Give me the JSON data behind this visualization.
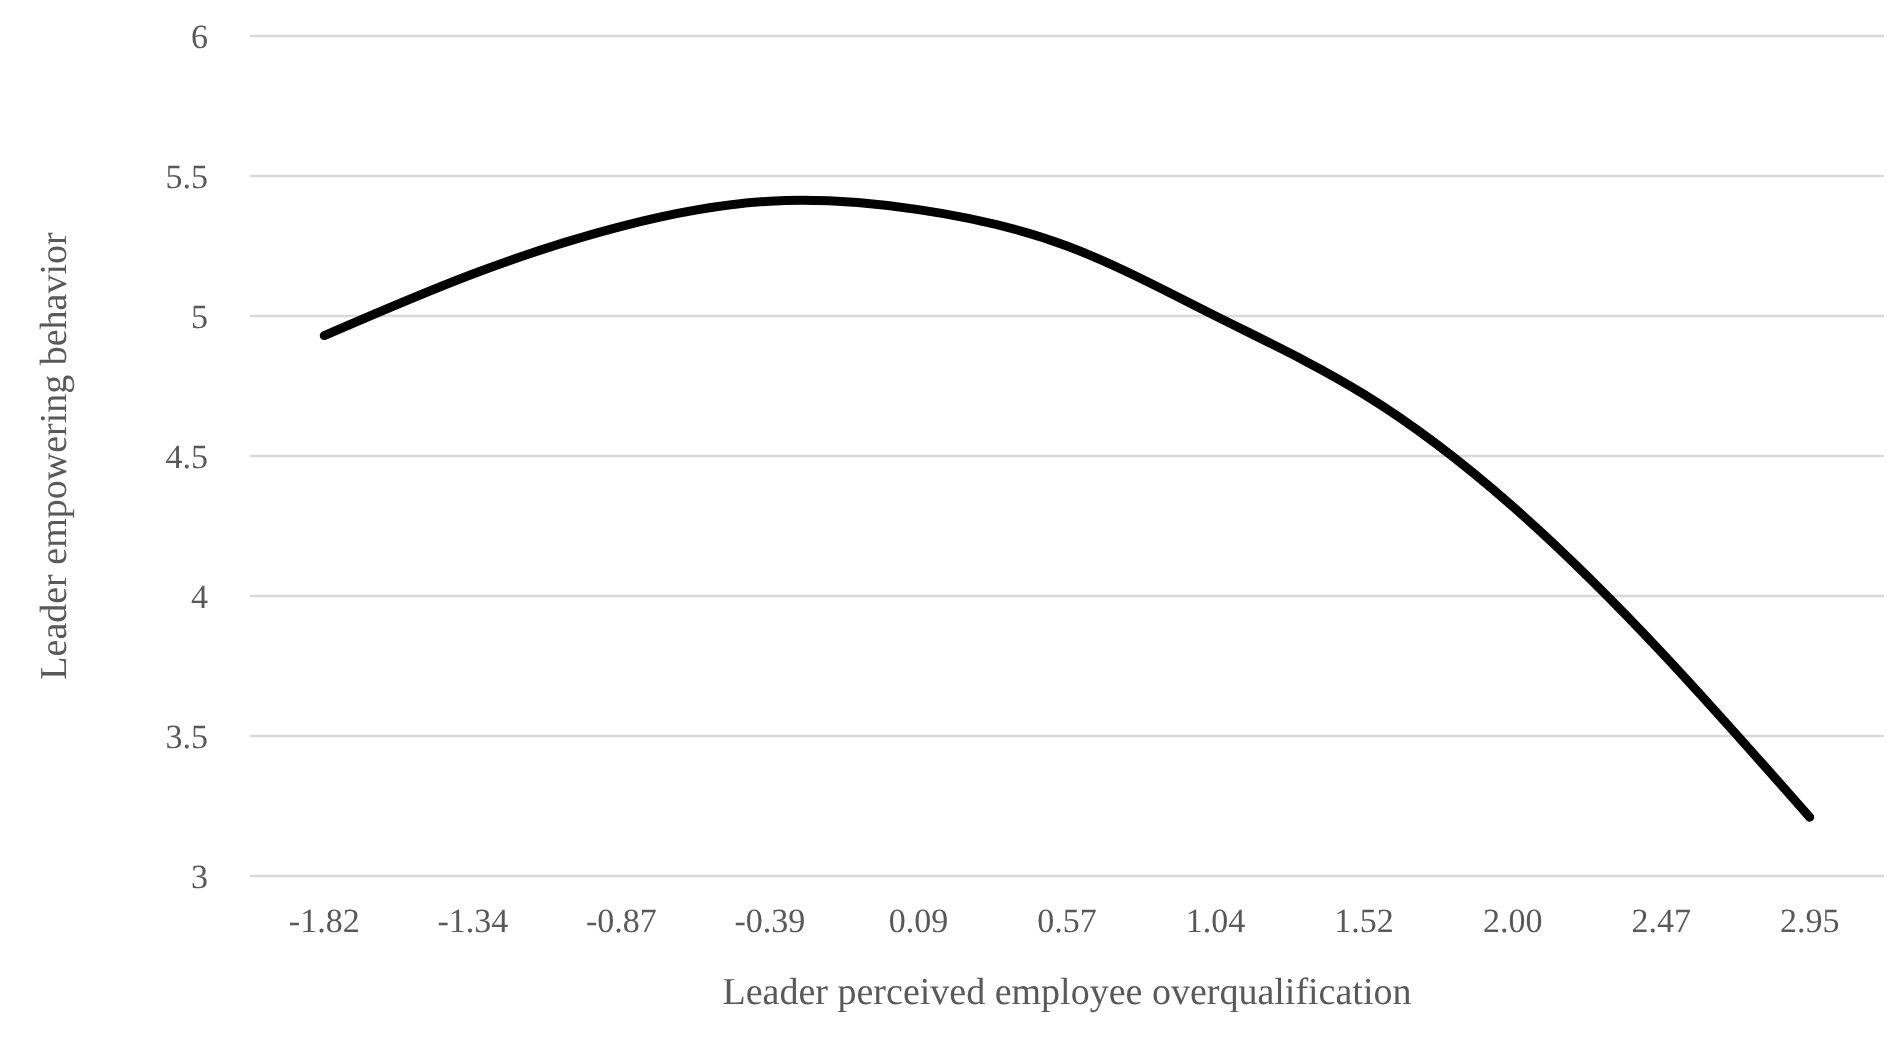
{
  "chart_data": {
    "type": "line",
    "xlabel": "Leader perceived employee overqualification",
    "ylabel": "Leader empowering behavior",
    "categories": [
      "-1.82",
      "-1.34",
      "-0.87",
      "-0.39",
      "0.09",
      "0.57",
      "1.04",
      "1.52",
      "2.00",
      "2.47",
      "2.95"
    ],
    "series": [
      {
        "color": "#000000",
        "values": [
          4.93,
          5.15,
          5.32,
          5.41,
          5.38,
          5.25,
          5.0,
          4.72,
          4.32,
          3.8,
          3.21
        ]
      }
    ],
    "ylim": [
      3,
      6
    ],
    "yticks": [
      3,
      3.5,
      4,
      4.5,
      5,
      5.5,
      6
    ],
    "grid": "y",
    "marker": "none",
    "line_style": "solid"
  }
}
